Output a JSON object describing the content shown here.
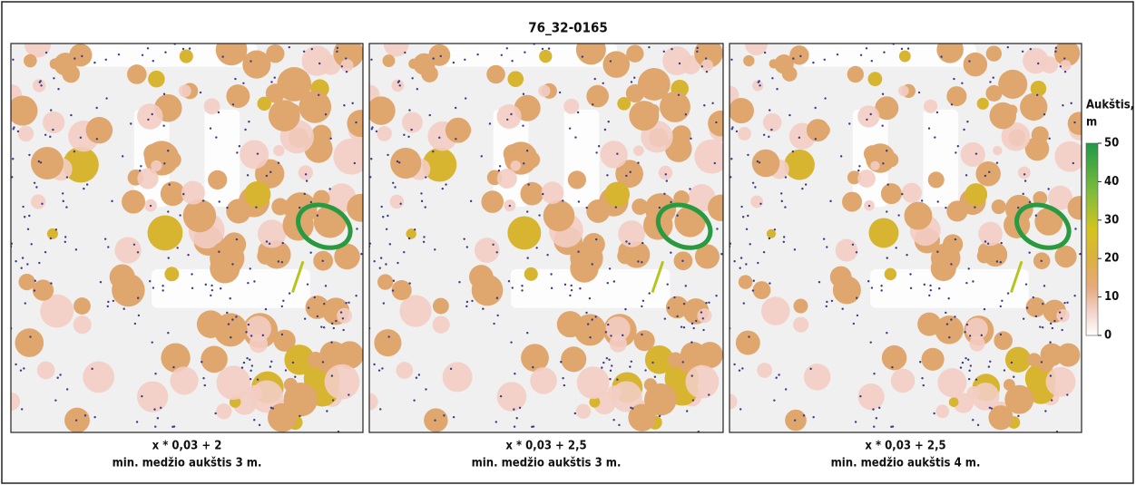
{
  "title": "76_32-0165",
  "panels": [
    {
      "caption_lines": [
        "x * 0,03 + 2",
        "min. medžio aukštis 3 m."
      ]
    },
    {
      "caption_lines": [
        "x * 0,03 + 2,5",
        "min. medžio aukštis 3 m."
      ]
    },
    {
      "caption_lines": [
        "x * 0,03 + 2,5",
        "min. medžio aukštis 4 m."
      ]
    }
  ],
  "legend": {
    "title_lines": [
      "Aukštis,",
      "m"
    ],
    "lim": [
      0,
      50
    ],
    "ticks": [
      0,
      10,
      20,
      30,
      40,
      50
    ]
  }
}
